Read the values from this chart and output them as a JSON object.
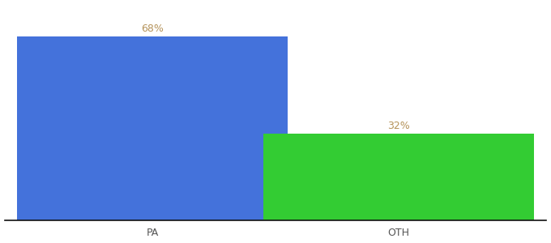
{
  "categories": [
    "PA",
    "OTH"
  ],
  "values": [
    68,
    32
  ],
  "bar_colors": [
    "#4472db",
    "#33cc33"
  ],
  "label_color": "#b5935a",
  "label_fontsize": 9,
  "tick_fontsize": 9,
  "tick_color": "#555555",
  "background_color": "#ffffff",
  "ylim": [
    0,
    80
  ],
  "bar_width": 0.55,
  "label_format": [
    "68%",
    "32%"
  ],
  "x_positions": [
    0.25,
    0.75
  ]
}
